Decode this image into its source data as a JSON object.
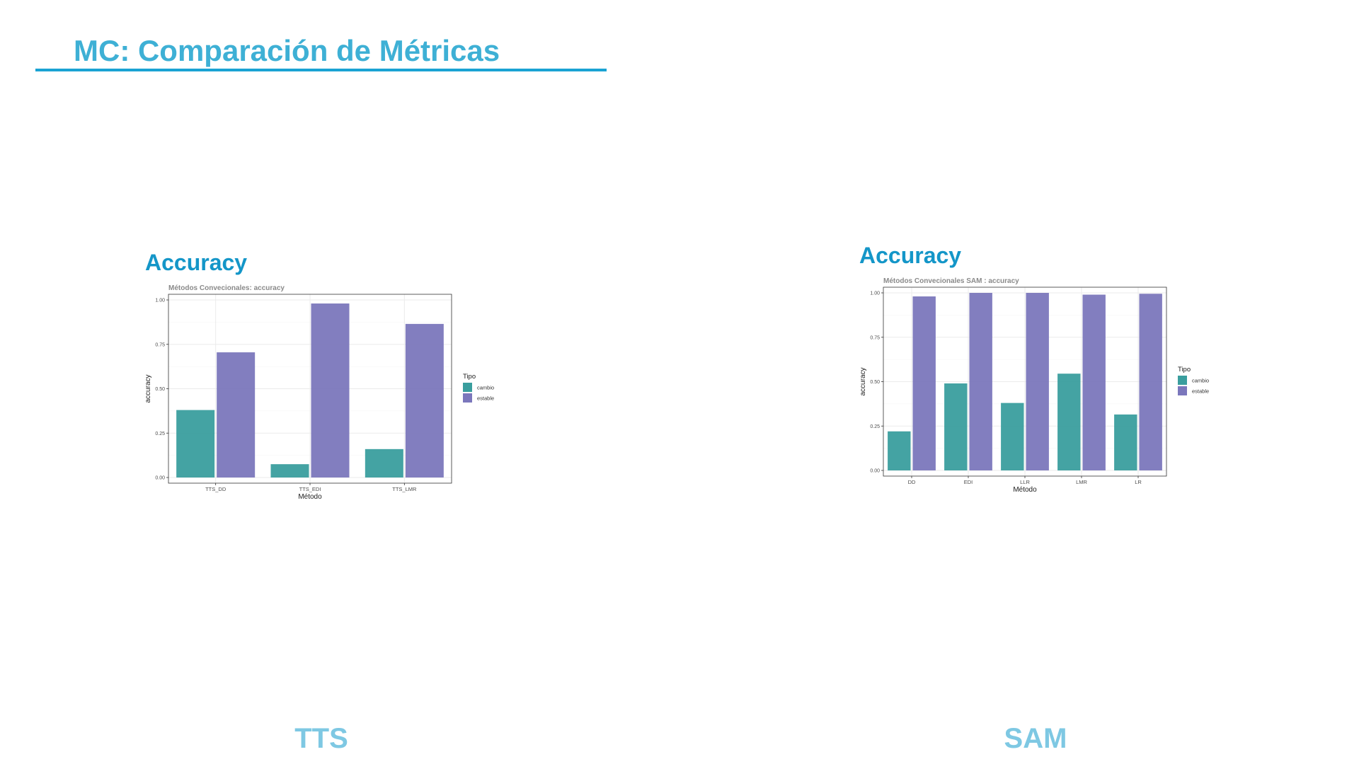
{
  "slide": {
    "title": "MC: Comparación de Métricas",
    "colors": {
      "title": "#3eb0d5",
      "rule": "#1aa3d3",
      "heading": "#1496c8",
      "footer": "#7ec8e3"
    }
  },
  "panels": [
    {
      "heading": "Accuracy",
      "footer": "TTS"
    },
    {
      "heading": "Accuracy",
      "footer": "SAM"
    }
  ],
  "chart_data": [
    {
      "type": "bar",
      "title": "Métodos Convecionales: accuracy",
      "xlabel": "Método",
      "ylabel": "accuracy",
      "categories": [
        "TTS_DD",
        "TTS_EDI",
        "TTS_LMR"
      ],
      "series": [
        {
          "name": "cambio",
          "color": "#3a9e9e",
          "values": [
            0.38,
            0.075,
            0.16
          ]
        },
        {
          "name": "estable",
          "color": "#7b77bc",
          "values": [
            0.705,
            0.98,
            0.865
          ]
        }
      ],
      "ylim": [
        0,
        1
      ],
      "yticks": [
        "0.00",
        "0.25",
        "0.50",
        "0.75",
        "1.00"
      ],
      "legend_title": "Tipo",
      "legend_position": "right",
      "grid": true
    },
    {
      "type": "bar",
      "title": "Métodos Convecionales SAM : accuracy",
      "xlabel": "Método",
      "ylabel": "accuracy",
      "categories": [
        "DD",
        "EDI",
        "LLR",
        "LMR",
        "LR"
      ],
      "series": [
        {
          "name": "cambio",
          "color": "#3a9e9e",
          "values": [
            0.22,
            0.49,
            0.38,
            0.545,
            0.315
          ]
        },
        {
          "name": "estable",
          "color": "#7b77bc",
          "values": [
            0.98,
            1.0,
            1.0,
            0.99,
            0.995
          ]
        }
      ],
      "ylim": [
        0,
        1
      ],
      "yticks": [
        "0.00",
        "0.25",
        "0.50",
        "0.75",
        "1.00"
      ],
      "legend_title": "Tipo",
      "legend_position": "right",
      "grid": true
    }
  ]
}
